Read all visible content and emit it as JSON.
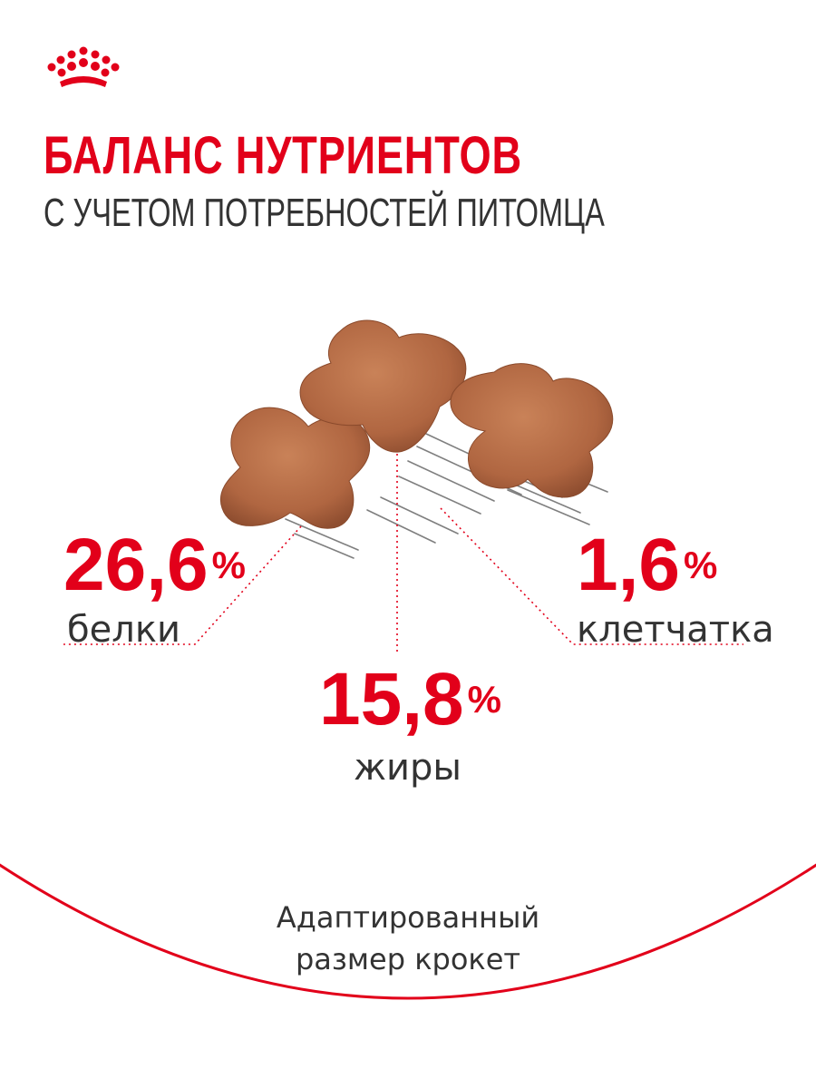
{
  "logo": {
    "icon": "crown-icon",
    "color": "#e2001a"
  },
  "header": {
    "title": "БАЛАНС НУТРИЕНТОВ",
    "subtitle": "С УЧЕТОМ ПОТРЕБНОСТЕЙ ПИТОМЦА"
  },
  "nutrients": {
    "protein": {
      "value": "26,6",
      "unit": "%",
      "label": "белки"
    },
    "fat": {
      "value": "15,8",
      "unit": "%",
      "label": "жиры"
    },
    "fiber": {
      "value": "1,6",
      "unit": "%",
      "label": "клетчатка"
    }
  },
  "footer": {
    "line1": "Адаптированный",
    "line2": "размер крокет"
  },
  "colors": {
    "accent": "#e2001a",
    "text": "#333333",
    "kibble": "#b36b45"
  }
}
